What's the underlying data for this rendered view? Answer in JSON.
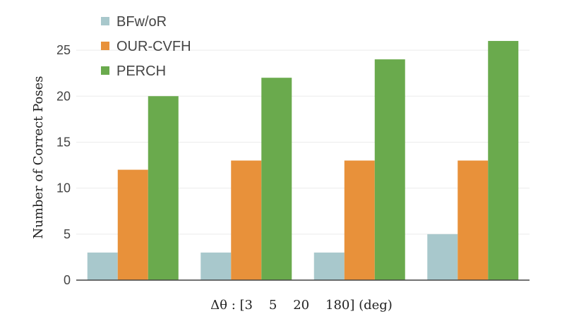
{
  "chart_data": {
    "type": "bar",
    "xlabel": "Δθ : [3    5    20    180] (deg)",
    "ylabel": "Number of Correct Poses",
    "categories": [
      "3",
      "5",
      "20",
      "180"
    ],
    "ylim": [
      0,
      27
    ],
    "yticks": [
      0,
      5,
      10,
      15,
      20,
      25
    ],
    "grid": true,
    "legend_position": "top-left",
    "series": [
      {
        "name": "BFw/oR",
        "color": "#a8c8cc",
        "values": [
          3,
          3,
          3,
          5
        ]
      },
      {
        "name": "OUR-CVFH",
        "color": "#e8913a",
        "values": [
          12,
          13,
          13,
          13
        ]
      },
      {
        "name": "PERCH",
        "color": "#6aaa4d",
        "values": [
          20,
          22,
          24,
          26
        ]
      }
    ]
  }
}
